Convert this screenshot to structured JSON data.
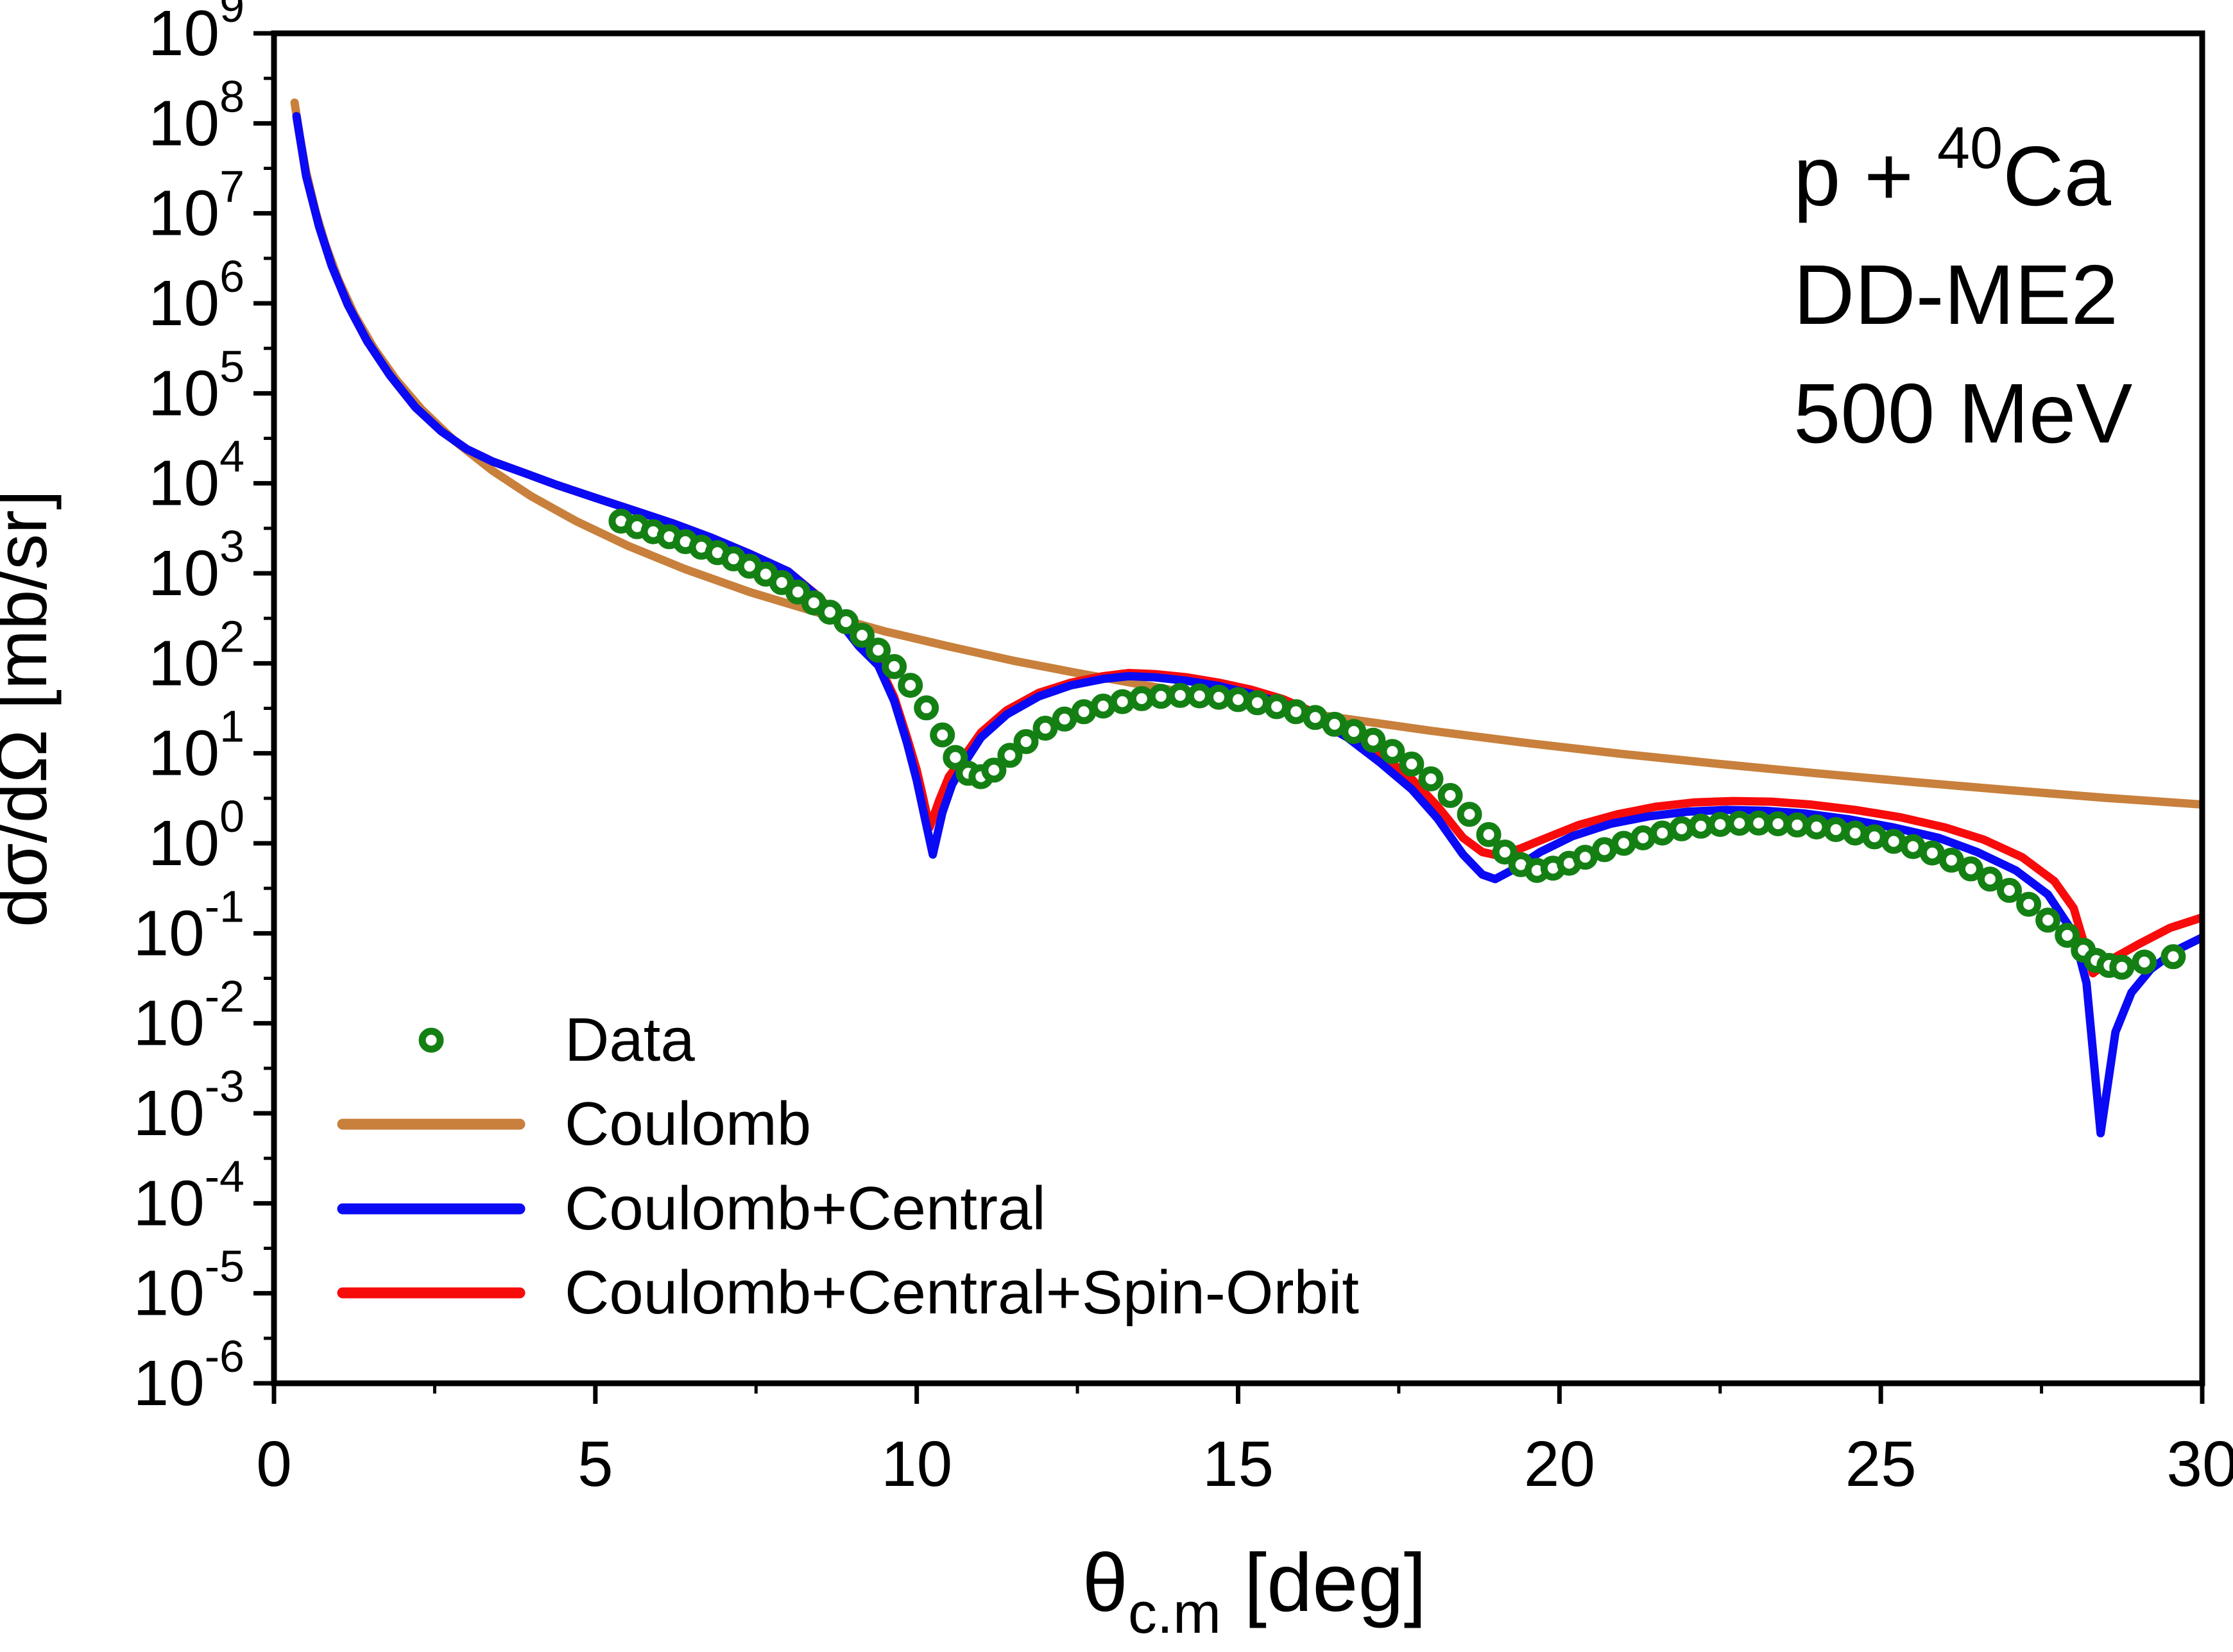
{
  "annotation": {
    "reaction_prefix": "p + ",
    "reaction_mass": "40",
    "reaction_nucleus": "Ca",
    "model": "DD-ME2",
    "energy": "500 MeV"
  },
  "axes": {
    "y_title": "dσ/dΩ [mb/sr]",
    "x_title_theta": "θ",
    "x_title_sub": "c.m",
    "x_title_unit": " [deg]",
    "y_tick_mantissa": "10"
  },
  "legend": {
    "entries": [
      {
        "label": "Data",
        "marker": "open-circle",
        "color": "#148014"
      },
      {
        "label": "Coulomb",
        "marker": "line",
        "color": "#C8803C"
      },
      {
        "label": "Coulomb+Central",
        "marker": "line",
        "color": "#0A0AF5"
      },
      {
        "label": "Coulomb+Central+Spin-Orbit",
        "marker": "line",
        "color": "#F80B0B"
      }
    ]
  },
  "chart_data": {
    "type": "line",
    "title": "",
    "xlabel": "theta_c.m [deg]",
    "ylabel": "dsigma/dOmega [mb/sr]",
    "xlim": [
      0,
      30
    ],
    "ylim_exponents": [
      -6,
      9
    ],
    "x_major_ticks": [
      0,
      5,
      10,
      15,
      20,
      25,
      30
    ],
    "x_minor_ticks": [
      2.5,
      7.5,
      12.5,
      17.5,
      22.5,
      27.5
    ],
    "y_tick_exponents": [
      9,
      8,
      7,
      6,
      5,
      4,
      3,
      2,
      1,
      0,
      -1,
      -2,
      -3,
      -4,
      -5,
      -6
    ],
    "grid": false,
    "legend_position": "lower-left",
    "series": [
      {
        "name": "Coulomb",
        "color": "#C8803C",
        "kind": "line",
        "width": 13,
        "points": [
          [
            0.32,
            170000000.0
          ],
          [
            0.4,
            72000000.0
          ],
          [
            0.5,
            29000000.0
          ],
          [
            0.65,
            10300000.0
          ],
          [
            0.8,
            4500000.0
          ],
          [
            1.0,
            1840000.0
          ],
          [
            1.25,
            750000.0
          ],
          [
            1.55,
            320000.0
          ],
          [
            1.9,
            142000.0
          ],
          [
            2.3,
            66000.0
          ],
          [
            2.8,
            30000.0
          ],
          [
            3.4,
            13800.0
          ],
          [
            4.0,
            7200
          ],
          [
            4.7,
            3800
          ],
          [
            5.5,
            2030
          ],
          [
            6.4,
            1110
          ],
          [
            7.4,
            620
          ],
          [
            8.5,
            360
          ],
          [
            9.5,
            227
          ],
          [
            10.5,
            154
          ],
          [
            11.5,
            107
          ],
          [
            12.5,
            78
          ],
          [
            13.5,
            58
          ],
          [
            15,
            37
          ],
          [
            16.5,
            25.2
          ],
          [
            18,
            17.8
          ],
          [
            19.5,
            13
          ],
          [
            21,
            9.8
          ],
          [
            22.5,
            7.6
          ],
          [
            24,
            6.0
          ],
          [
            25.5,
            4.8
          ],
          [
            27,
            3.9
          ],
          [
            28.5,
            3.2
          ],
          [
            30,
            2.7
          ]
        ]
      },
      {
        "name": "Coulomb+Central+Spin-Orbit",
        "color": "#F80B0B",
        "kind": "line",
        "width": 13,
        "points": [
          [
            0.35,
            120000000.0
          ],
          [
            0.5,
            26000000.0
          ],
          [
            0.7,
            7200000.0
          ],
          [
            0.9,
            2600000.0
          ],
          [
            1.15,
            960000.0
          ],
          [
            1.45,
            380000.0
          ],
          [
            1.8,
            160000.0
          ],
          [
            2.2,
            70000.0
          ],
          [
            2.6,
            38000.0
          ],
          [
            3.0,
            24000.0
          ],
          [
            3.4,
            17500.0
          ],
          [
            3.9,
            13000.0
          ],
          [
            4.4,
            9600
          ],
          [
            5.0,
            6900
          ],
          [
            5.6,
            5000
          ],
          [
            6.2,
            3600
          ],
          [
            6.8,
            2500
          ],
          [
            7.4,
            1650
          ],
          [
            8.0,
            1050
          ],
          [
            8.45,
            570
          ],
          [
            8.8,
            300
          ],
          [
            9.1,
            160
          ],
          [
            9.4,
            100
          ],
          [
            9.65,
            42
          ],
          [
            9.85,
            15
          ],
          [
            10.0,
            6.5
          ],
          [
            10.1,
            3.2
          ],
          [
            10.2,
            1.5
          ],
          [
            10.35,
            3.0
          ],
          [
            10.5,
            5.5
          ],
          [
            10.75,
            9.5
          ],
          [
            11.0,
            17
          ],
          [
            11.4,
            30
          ],
          [
            11.9,
            47
          ],
          [
            12.4,
            61
          ],
          [
            12.9,
            72
          ],
          [
            13.3,
            78
          ],
          [
            13.7,
            76
          ],
          [
            14.2,
            70
          ],
          [
            14.7,
            61
          ],
          [
            15.2,
            51
          ],
          [
            15.7,
            40
          ],
          [
            16.2,
            28
          ],
          [
            16.7,
            17.5
          ],
          [
            17.2,
            10
          ],
          [
            17.7,
            5.2
          ],
          [
            18.1,
            2.6
          ],
          [
            18.5,
            1.15
          ],
          [
            18.8,
            0.8
          ],
          [
            19.05,
            0.73
          ],
          [
            19.4,
            0.88
          ],
          [
            19.8,
            1.15
          ],
          [
            20.3,
            1.6
          ],
          [
            20.9,
            2.1
          ],
          [
            21.5,
            2.55
          ],
          [
            22.1,
            2.85
          ],
          [
            22.7,
            2.95
          ],
          [
            23.3,
            2.9
          ],
          [
            23.9,
            2.7
          ],
          [
            24.6,
            2.35
          ],
          [
            25.3,
            1.95
          ],
          [
            26.0,
            1.5
          ],
          [
            26.6,
            1.1
          ],
          [
            27.2,
            0.7
          ],
          [
            27.7,
            0.38
          ],
          [
            28.0,
            0.19
          ],
          [
            28.3,
            0.036
          ],
          [
            28.6,
            0.052
          ],
          [
            29.0,
            0.075
          ],
          [
            29.5,
            0.115
          ],
          [
            30,
            0.15
          ]
        ]
      },
      {
        "name": "Coulomb+Central",
        "color": "#0A0AF5",
        "kind": "line",
        "width": 13,
        "points": [
          [
            0.35,
            120000000.0
          ],
          [
            0.5,
            26000000.0
          ],
          [
            0.7,
            7200000.0
          ],
          [
            0.9,
            2600000.0
          ],
          [
            1.15,
            960000.0
          ],
          [
            1.45,
            380000.0
          ],
          [
            1.8,
            160000.0
          ],
          [
            2.2,
            70000.0
          ],
          [
            2.6,
            38000.0
          ],
          [
            3.0,
            24000.0
          ],
          [
            3.4,
            17500.0
          ],
          [
            3.9,
            13000.0
          ],
          [
            4.4,
            9600
          ],
          [
            5.0,
            6900
          ],
          [
            5.6,
            5000
          ],
          [
            6.2,
            3600
          ],
          [
            6.8,
            2500
          ],
          [
            7.4,
            1650
          ],
          [
            8.0,
            1050
          ],
          [
            8.45,
            560
          ],
          [
            8.8,
            290
          ],
          [
            9.1,
            155
          ],
          [
            9.4,
            95
          ],
          [
            9.65,
            38
          ],
          [
            9.85,
            13
          ],
          [
            10.0,
            5
          ],
          [
            10.12,
            2
          ],
          [
            10.25,
            0.75
          ],
          [
            10.4,
            2.2
          ],
          [
            10.55,
            4.5
          ],
          [
            10.75,
            8
          ],
          [
            11.0,
            15
          ],
          [
            11.4,
            27
          ],
          [
            11.9,
            43
          ],
          [
            12.4,
            57
          ],
          [
            12.9,
            67
          ],
          [
            13.3,
            72
          ],
          [
            13.7,
            70
          ],
          [
            14.2,
            64
          ],
          [
            14.7,
            56
          ],
          [
            15.2,
            46
          ],
          [
            15.7,
            36
          ],
          [
            16.2,
            24
          ],
          [
            16.7,
            15
          ],
          [
            17.2,
            8
          ],
          [
            17.7,
            4.0
          ],
          [
            18.1,
            1.9
          ],
          [
            18.5,
            0.75
          ],
          [
            18.8,
            0.45
          ],
          [
            19.0,
            0.4
          ],
          [
            19.3,
            0.52
          ],
          [
            19.7,
            0.8
          ],
          [
            20.2,
            1.2
          ],
          [
            20.8,
            1.65
          ],
          [
            21.4,
            2.0
          ],
          [
            22.0,
            2.25
          ],
          [
            22.6,
            2.35
          ],
          [
            23.2,
            2.3
          ],
          [
            23.8,
            2.15
          ],
          [
            24.5,
            1.85
          ],
          [
            25.2,
            1.5
          ],
          [
            25.9,
            1.15
          ],
          [
            26.5,
            0.8
          ],
          [
            27.1,
            0.5
          ],
          [
            27.6,
            0.27
          ],
          [
            28.0,
            0.1
          ],
          [
            28.2,
            0.028
          ],
          [
            28.42,
            0.0006
          ],
          [
            28.65,
            0.008
          ],
          [
            28.9,
            0.022
          ],
          [
            29.2,
            0.04
          ],
          [
            29.6,
            0.065
          ],
          [
            30,
            0.09
          ]
        ]
      },
      {
        "name": "Data",
        "color": "#148014",
        "kind": "scatter",
        "marker_radius": 14,
        "marker_stroke": 11,
        "points": [
          [
            5.4,
            3800
          ],
          [
            5.65,
            3300
          ],
          [
            5.9,
            2900
          ],
          [
            6.15,
            2550
          ],
          [
            6.4,
            2250
          ],
          [
            6.65,
            1950
          ],
          [
            6.9,
            1700
          ],
          [
            7.15,
            1450
          ],
          [
            7.4,
            1200
          ],
          [
            7.65,
            980
          ],
          [
            7.9,
            790
          ],
          [
            8.15,
            620
          ],
          [
            8.4,
            470
          ],
          [
            8.65,
            370
          ],
          [
            8.9,
            290
          ],
          [
            9.15,
            205
          ],
          [
            9.4,
            140
          ],
          [
            9.65,
            92
          ],
          [
            9.9,
            57
          ],
          [
            10.15,
            32
          ],
          [
            10.4,
            16
          ],
          [
            10.6,
            9
          ],
          [
            10.8,
            6.0
          ],
          [
            11.0,
            5.5
          ],
          [
            11.2,
            6.5
          ],
          [
            11.45,
            9.5
          ],
          [
            11.7,
            13.5
          ],
          [
            12.0,
            19
          ],
          [
            12.3,
            24
          ],
          [
            12.6,
            29
          ],
          [
            12.9,
            33.5
          ],
          [
            13.2,
            37.5
          ],
          [
            13.5,
            40.5
          ],
          [
            13.8,
            43
          ],
          [
            14.1,
            44
          ],
          [
            14.4,
            43.5
          ],
          [
            14.7,
            42
          ],
          [
            15.0,
            39.5
          ],
          [
            15.3,
            36.5
          ],
          [
            15.6,
            33
          ],
          [
            15.9,
            29
          ],
          [
            16.2,
            25
          ],
          [
            16.5,
            21
          ],
          [
            16.8,
            17.5
          ],
          [
            17.1,
            14
          ],
          [
            17.4,
            10.5
          ],
          [
            17.7,
            7.6
          ],
          [
            18.0,
            5.2
          ],
          [
            18.3,
            3.4
          ],
          [
            18.6,
            2.1
          ],
          [
            18.9,
            1.25
          ],
          [
            19.15,
            0.8
          ],
          [
            19.4,
            0.58
          ],
          [
            19.65,
            0.5
          ],
          [
            19.9,
            0.53
          ],
          [
            20.15,
            0.6
          ],
          [
            20.4,
            0.7
          ],
          [
            20.7,
            0.85
          ],
          [
            21.0,
            1.0
          ],
          [
            21.3,
            1.15
          ],
          [
            21.6,
            1.3
          ],
          [
            21.9,
            1.45
          ],
          [
            22.2,
            1.55
          ],
          [
            22.5,
            1.62
          ],
          [
            22.8,
            1.67
          ],
          [
            23.1,
            1.68
          ],
          [
            23.4,
            1.65
          ],
          [
            23.7,
            1.6
          ],
          [
            24.0,
            1.52
          ],
          [
            24.3,
            1.42
          ],
          [
            24.6,
            1.3
          ],
          [
            24.9,
            1.18
          ],
          [
            25.2,
            1.05
          ],
          [
            25.5,
            0.92
          ],
          [
            25.8,
            0.78
          ],
          [
            26.1,
            0.65
          ],
          [
            26.4,
            0.52
          ],
          [
            26.7,
            0.4
          ],
          [
            27.0,
            0.3
          ],
          [
            27.3,
            0.21
          ],
          [
            27.6,
            0.14
          ],
          [
            27.9,
            0.095
          ],
          [
            28.15,
            0.065
          ],
          [
            28.35,
            0.05
          ],
          [
            28.55,
            0.044
          ],
          [
            28.75,
            0.042
          ],
          [
            29.1,
            0.048
          ],
          [
            29.55,
            0.055
          ]
        ]
      }
    ]
  }
}
